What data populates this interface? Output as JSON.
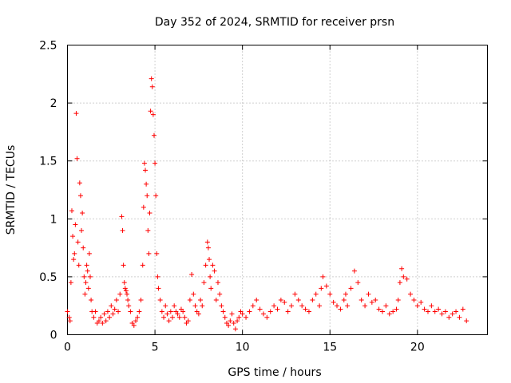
{
  "chart_data": {
    "type": "scatter",
    "title": "Day 352 of 2024, SRMTID for receiver prsn",
    "xlabel": "GPS time / hours",
    "ylabel": "SRMTID / TECUs",
    "xlim": [
      0,
      24
    ],
    "ylim": [
      0,
      2.5
    ],
    "x_ticks": [
      0,
      5,
      10,
      15,
      20
    ],
    "x_tick_labels": [
      "0",
      "5",
      "10",
      "15",
      "20"
    ],
    "y_ticks": [
      0,
      0.5,
      1,
      1.5,
      2,
      2.5
    ],
    "y_tick_labels": [
      "0",
      "0.5",
      "1",
      "1.5",
      "2",
      "2.5"
    ],
    "grid": true,
    "marker": "plus",
    "series": [
      {
        "name": "SRMTID",
        "color": "#ff0000",
        "x": [
          0.0,
          0.1,
          0.15,
          0.2,
          0.25,
          0.3,
          0.35,
          0.4,
          0.45,
          0.5,
          0.55,
          0.6,
          0.65,
          0.7,
          0.75,
          0.8,
          0.85,
          0.9,
          0.95,
          1.0,
          1.05,
          1.1,
          1.15,
          1.2,
          1.25,
          1.3,
          1.35,
          1.4,
          1.5,
          1.6,
          1.7,
          1.8,
          1.9,
          2.0,
          2.1,
          2.2,
          2.3,
          2.4,
          2.5,
          2.6,
          2.7,
          2.8,
          2.9,
          3.0,
          3.1,
          3.15,
          3.2,
          3.25,
          3.3,
          3.35,
          3.4,
          3.45,
          3.5,
          3.6,
          3.7,
          3.8,
          3.9,
          4.0,
          4.1,
          4.2,
          4.3,
          4.35,
          4.4,
          4.45,
          4.5,
          4.55,
          4.6,
          4.65,
          4.7,
          4.75,
          4.8,
          4.85,
          4.9,
          4.95,
          5.0,
          5.05,
          5.1,
          5.15,
          5.2,
          5.3,
          5.4,
          5.5,
          5.6,
          5.7,
          5.8,
          5.9,
          6.0,
          6.1,
          6.2,
          6.3,
          6.4,
          6.5,
          6.6,
          6.7,
          6.8,
          6.9,
          7.0,
          7.1,
          7.2,
          7.3,
          7.4,
          7.5,
          7.6,
          7.7,
          7.8,
          7.9,
          8.0,
          8.05,
          8.1,
          8.15,
          8.2,
          8.3,
          8.4,
          8.5,
          8.6,
          8.7,
          8.8,
          8.9,
          9.0,
          9.1,
          9.2,
          9.3,
          9.4,
          9.5,
          9.6,
          9.7,
          9.8,
          9.9,
          10.0,
          10.2,
          10.4,
          10.6,
          10.8,
          11.0,
          11.2,
          11.4,
          11.6,
          11.8,
          12.0,
          12.2,
          12.4,
          12.6,
          12.8,
          13.0,
          13.2,
          13.4,
          13.6,
          13.8,
          14.0,
          14.2,
          14.4,
          14.5,
          14.6,
          14.8,
          15.0,
          15.2,
          15.4,
          15.6,
          15.8,
          15.9,
          16.0,
          16.2,
          16.4,
          16.6,
          16.8,
          17.0,
          17.2,
          17.4,
          17.6,
          17.8,
          18.0,
          18.2,
          18.4,
          18.6,
          18.8,
          18.9,
          19.0,
          19.1,
          19.2,
          19.4,
          19.6,
          19.8,
          20.0,
          20.2,
          20.4,
          20.6,
          20.8,
          21.0,
          21.2,
          21.4,
          21.6,
          21.8,
          22.0,
          22.2,
          22.4,
          22.6,
          22.8
        ],
        "y": [
          0.2,
          0.15,
          0.12,
          0.45,
          1.07,
          0.85,
          0.65,
          0.7,
          0.95,
          1.91,
          1.52,
          0.8,
          0.6,
          1.31,
          1.2,
          0.9,
          1.05,
          0.75,
          0.5,
          0.35,
          0.45,
          0.6,
          0.55,
          0.4,
          0.7,
          0.5,
          0.3,
          0.2,
          0.15,
          0.2,
          0.1,
          0.12,
          0.15,
          0.1,
          0.18,
          0.12,
          0.2,
          0.15,
          0.25,
          0.18,
          0.22,
          0.3,
          0.2,
          0.35,
          1.02,
          0.9,
          0.6,
          0.45,
          0.4,
          0.38,
          0.35,
          0.3,
          0.25,
          0.2,
          0.1,
          0.08,
          0.12,
          0.15,
          0.2,
          0.3,
          0.6,
          1.1,
          1.48,
          1.42,
          1.3,
          1.2,
          0.9,
          0.7,
          1.05,
          1.93,
          2.21,
          2.14,
          1.9,
          1.72,
          1.48,
          1.2,
          0.7,
          0.5,
          0.4,
          0.3,
          0.2,
          0.15,
          0.25,
          0.18,
          0.12,
          0.2,
          0.15,
          0.25,
          0.2,
          0.18,
          0.15,
          0.22,
          0.2,
          0.15,
          0.1,
          0.12,
          0.3,
          0.52,
          0.35,
          0.25,
          0.2,
          0.18,
          0.3,
          0.25,
          0.45,
          0.6,
          0.8,
          0.75,
          0.65,
          0.5,
          0.4,
          0.6,
          0.55,
          0.3,
          0.45,
          0.35,
          0.25,
          0.2,
          0.15,
          0.1,
          0.08,
          0.12,
          0.18,
          0.1,
          0.05,
          0.12,
          0.15,
          0.2,
          0.18,
          0.15,
          0.2,
          0.25,
          0.3,
          0.22,
          0.18,
          0.15,
          0.2,
          0.25,
          0.22,
          0.3,
          0.28,
          0.2,
          0.25,
          0.35,
          0.3,
          0.25,
          0.22,
          0.2,
          0.3,
          0.35,
          0.25,
          0.4,
          0.5,
          0.42,
          0.35,
          0.28,
          0.25,
          0.22,
          0.3,
          0.35,
          0.25,
          0.4,
          0.55,
          0.45,
          0.3,
          0.25,
          0.35,
          0.28,
          0.3,
          0.22,
          0.2,
          0.25,
          0.18,
          0.2,
          0.22,
          0.3,
          0.45,
          0.57,
          0.5,
          0.48,
          0.35,
          0.3,
          0.25,
          0.28,
          0.22,
          0.2,
          0.25,
          0.2,
          0.22,
          0.18,
          0.2,
          0.15,
          0.18,
          0.2,
          0.15,
          0.22,
          0.12
        ]
      }
    ]
  }
}
